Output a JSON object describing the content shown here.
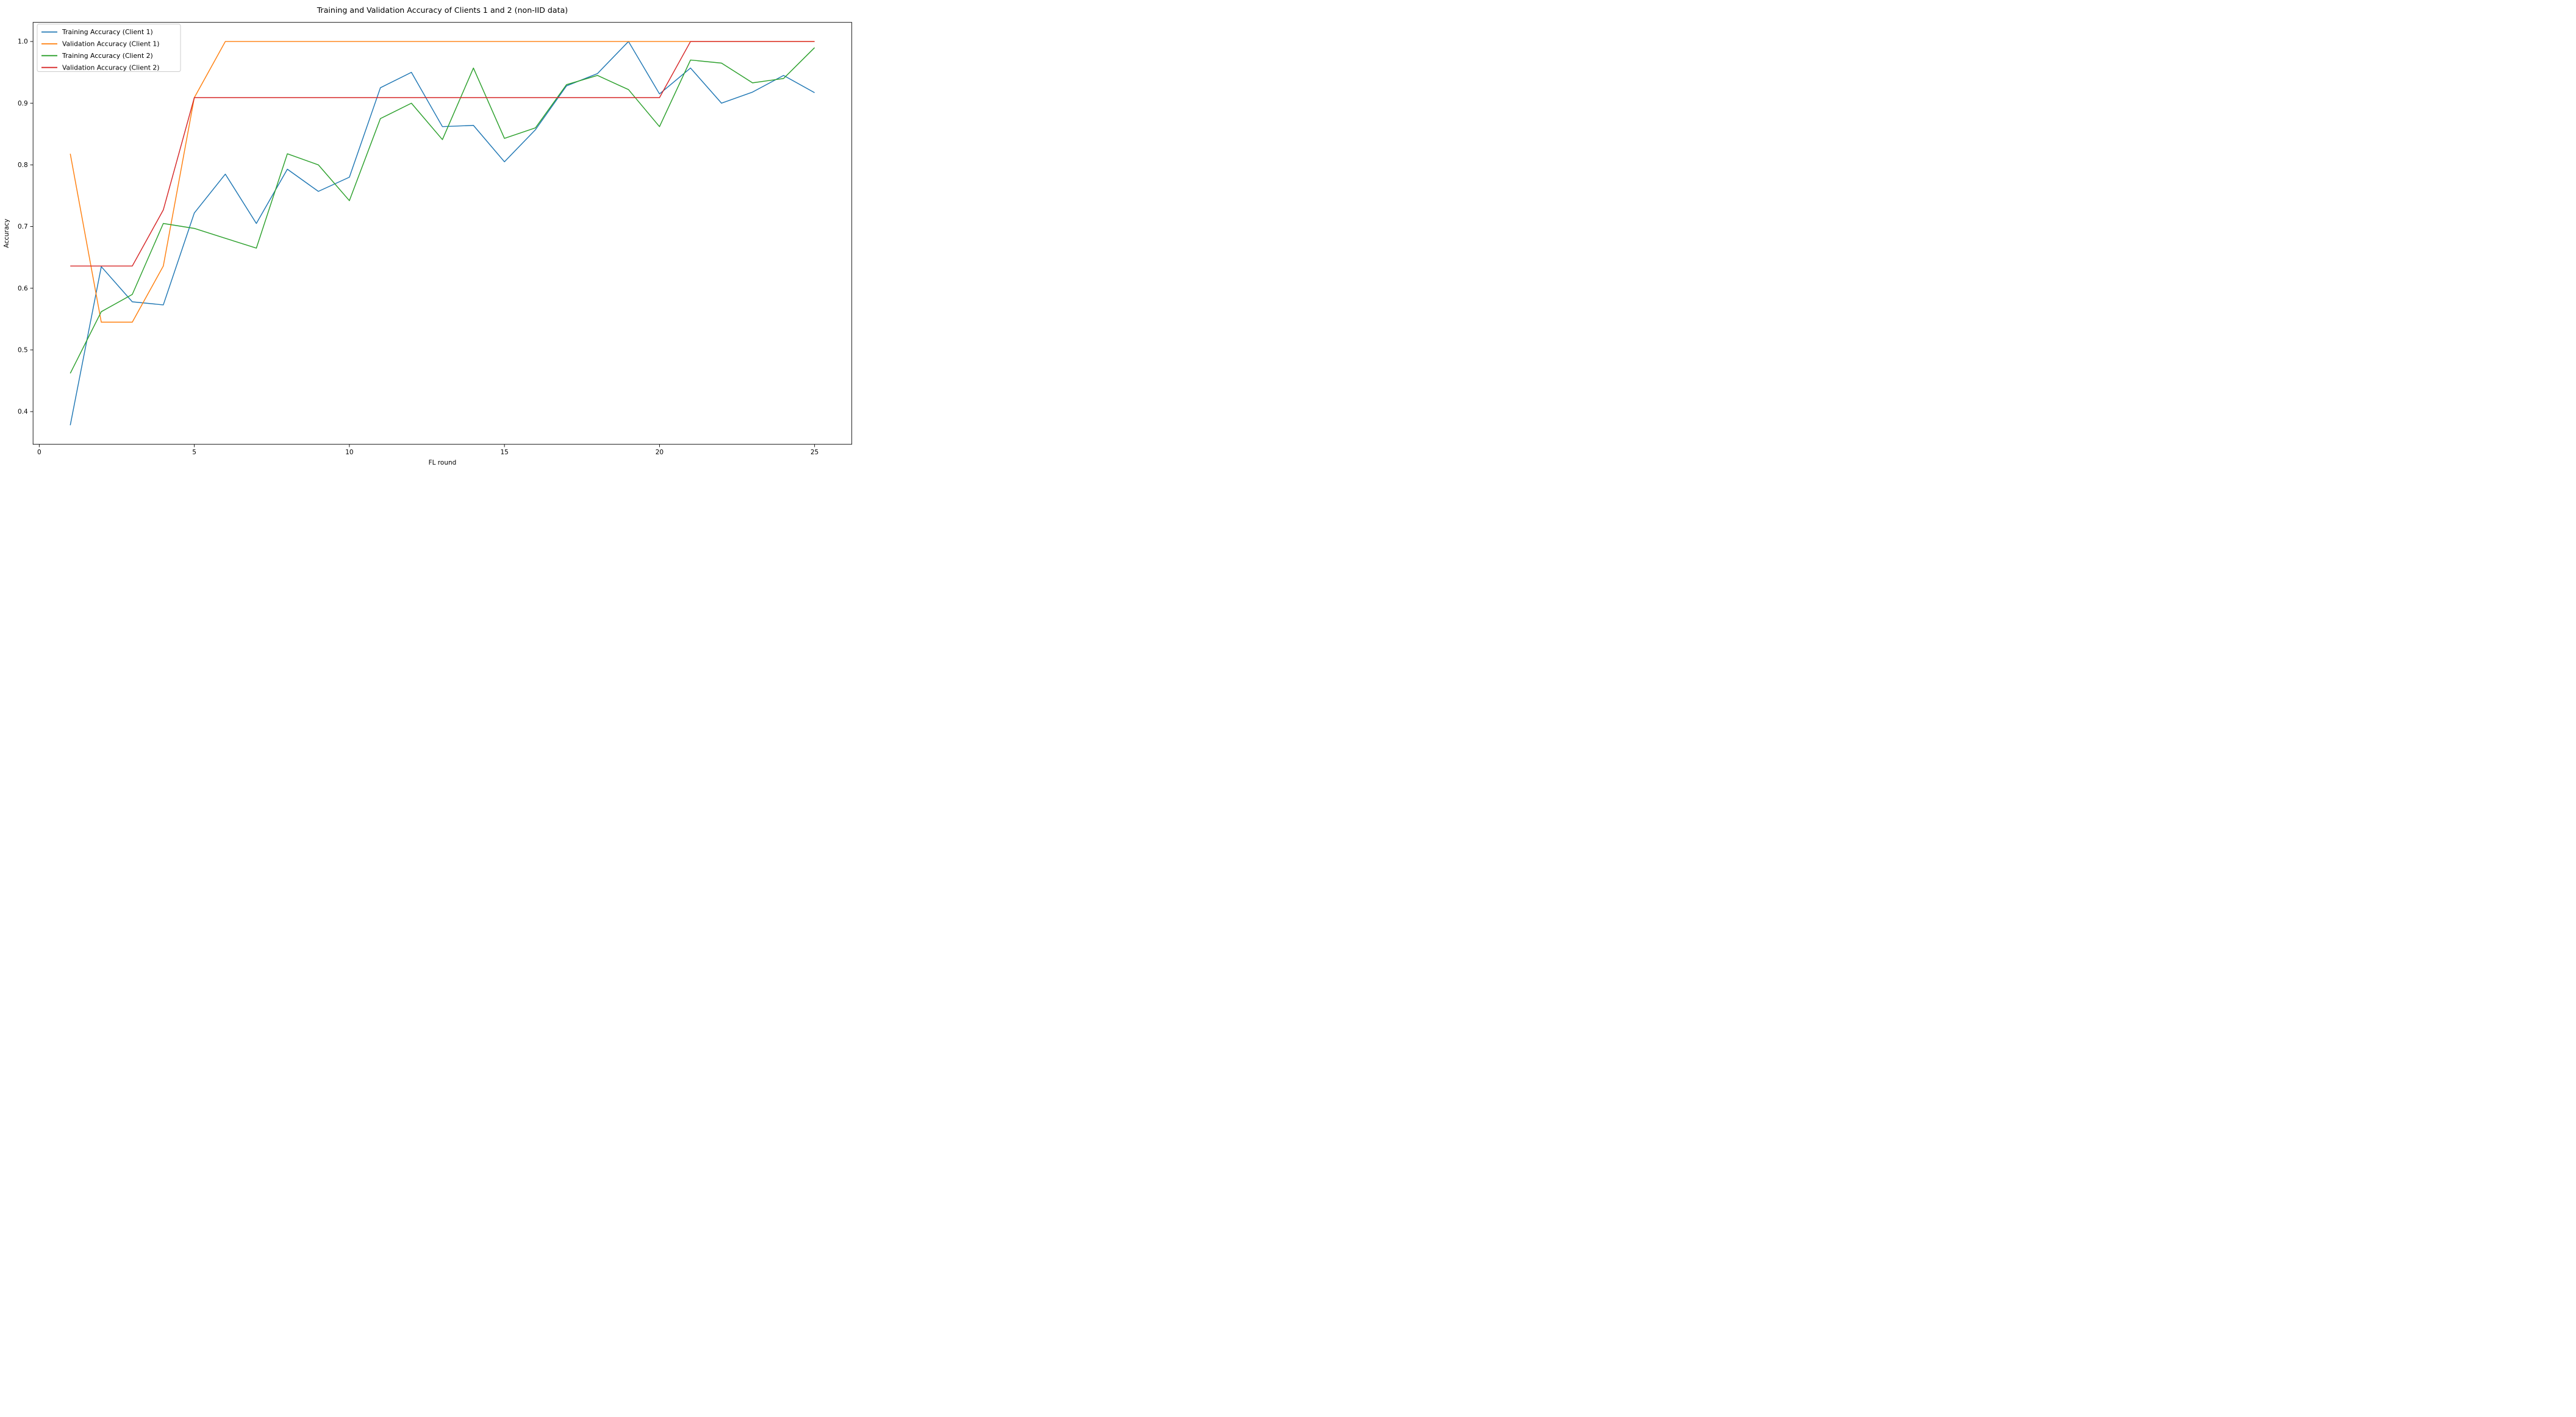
{
  "chart_data": {
    "type": "line",
    "title": "Training and Validation Accuracy of Clients 1 and 2 (non-IID data)",
    "xlabel": "FL round",
    "ylabel": "Accuracy",
    "grid": false,
    "legend_position": "upper-left",
    "xlim": [
      -0.2,
      26.2
    ],
    "ylim": [
      0.347,
      1.031
    ],
    "x_ticks": [
      0,
      5,
      10,
      15,
      20,
      25
    ],
    "x_tick_labels": [
      "0",
      "5",
      "10",
      "15",
      "20",
      "25"
    ],
    "y_ticks": [
      0.4,
      0.5,
      0.6,
      0.7,
      0.8,
      0.9,
      1.0
    ],
    "y_tick_labels": [
      "0.4",
      "0.5",
      "0.6",
      "0.7",
      "0.8",
      "0.9",
      "1.0"
    ],
    "x": [
      1,
      2,
      3,
      4,
      5,
      6,
      7,
      8,
      9,
      10,
      11,
      12,
      13,
      14,
      15,
      16,
      17,
      18,
      19,
      20,
      21,
      22,
      23,
      24,
      25
    ],
    "series": [
      {
        "name": "Training Accuracy (Client 1)",
        "color": "#1f77b4",
        "values": [
          0.378,
          0.635,
          0.578,
          0.573,
          0.722,
          0.785,
          0.705,
          0.793,
          0.757,
          0.78,
          0.925,
          0.95,
          0.862,
          0.864,
          0.805,
          0.857,
          0.928,
          0.948,
          1.0,
          0.915,
          0.957,
          0.9,
          0.918,
          0.945,
          0.917
        ]
      },
      {
        "name": "Validation Accuracy (Client 1)",
        "color": "#ff7f0e",
        "values": [
          0.818,
          0.545,
          0.545,
          0.636,
          0.909,
          1.0,
          1.0,
          1.0,
          1.0,
          1.0,
          1.0,
          1.0,
          1.0,
          1.0,
          1.0,
          1.0,
          1.0,
          1.0,
          1.0,
          1.0,
          1.0,
          1.0,
          1.0,
          1.0,
          1.0
        ]
      },
      {
        "name": "Training Accuracy (Client 2)",
        "color": "#2ca02c",
        "values": [
          0.462,
          0.562,
          0.59,
          0.705,
          0.697,
          0.681,
          0.665,
          0.818,
          0.8,
          0.742,
          0.875,
          0.9,
          0.841,
          0.957,
          0.843,
          0.86,
          0.93,
          0.945,
          0.922,
          0.862,
          0.97,
          0.965,
          0.933,
          0.94,
          0.99
        ]
      },
      {
        "name": "Validation Accuracy (Client 2)",
        "color": "#d62728",
        "values": [
          0.636,
          0.636,
          0.636,
          0.727,
          0.909,
          0.909,
          0.909,
          0.909,
          0.909,
          0.909,
          0.909,
          0.909,
          0.909,
          0.909,
          0.909,
          0.909,
          0.909,
          0.909,
          0.909,
          0.909,
          1.0,
          1.0,
          1.0,
          1.0,
          1.0
        ]
      }
    ],
    "frame_color": "#000000",
    "background_color": "#ffffff",
    "legend_border_color": "#cccccc"
  }
}
